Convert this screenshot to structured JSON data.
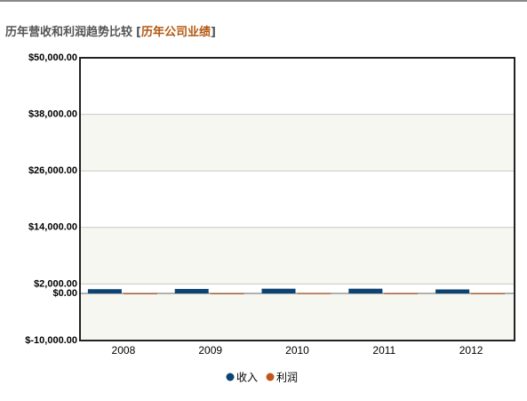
{
  "chart_data": {
    "type": "bar",
    "title": "历年营收和利润趋势比较",
    "title_link": {
      "open": "[",
      "text": "历年公司业绩",
      "close": "]"
    },
    "categories": [
      "2008",
      "2009",
      "2010",
      "2011",
      "2012"
    ],
    "series": [
      {
        "name": "收入",
        "color": "#0d4373",
        "values": [
          900,
          950,
          1000,
          1000,
          850
        ]
      },
      {
        "name": "利润",
        "color": "#c0561a",
        "values": [
          -80,
          -40,
          40,
          20,
          10
        ]
      }
    ],
    "ylim": [
      -10000,
      50000
    ],
    "yticks": [
      {
        "value": -10000,
        "label": "$-10,000.00"
      },
      {
        "value": 0,
        "label": "$0.00"
      },
      {
        "value": 2000,
        "label": "$2,000.00"
      },
      {
        "value": 14000,
        "label": "$14,000.00"
      },
      {
        "value": 26000,
        "label": "$26,000.00"
      },
      {
        "value": 38000,
        "label": "$38,000.00"
      },
      {
        "value": 50000,
        "label": "$50,000.00"
      }
    ],
    "grid": true,
    "legend": "bottom"
  }
}
